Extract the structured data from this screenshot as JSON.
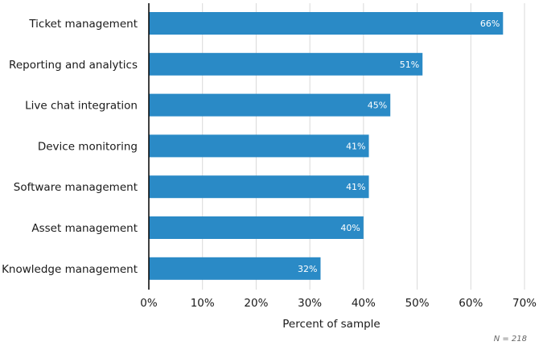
{
  "chart_data": {
    "type": "bar",
    "orientation": "horizontal",
    "title": "",
    "categories": [
      "Ticket management",
      "Reporting and analytics",
      "Live chat integration",
      "Device monitoring",
      "Software management",
      "Asset management",
      "Knowledge management"
    ],
    "values": [
      66,
      51,
      45,
      41,
      41,
      40,
      32
    ],
    "data_labels": [
      "66%",
      "51%",
      "45%",
      "41%",
      "41%",
      "40%",
      "32%"
    ],
    "xlabel": "Percent of sample",
    "ylabel": "",
    "xlim": [
      0,
      70
    ],
    "x_ticks": [
      0,
      10,
      20,
      30,
      40,
      50,
      60,
      70
    ],
    "x_tick_labels": [
      "0%",
      "10%",
      "20%",
      "30%",
      "40%",
      "50%",
      "60%",
      "70%"
    ],
    "grid": true,
    "note": "N = 218",
    "colors": {
      "bar": "#2a8ac6",
      "grid": "#d9d9d9",
      "axis": "#000000"
    }
  }
}
